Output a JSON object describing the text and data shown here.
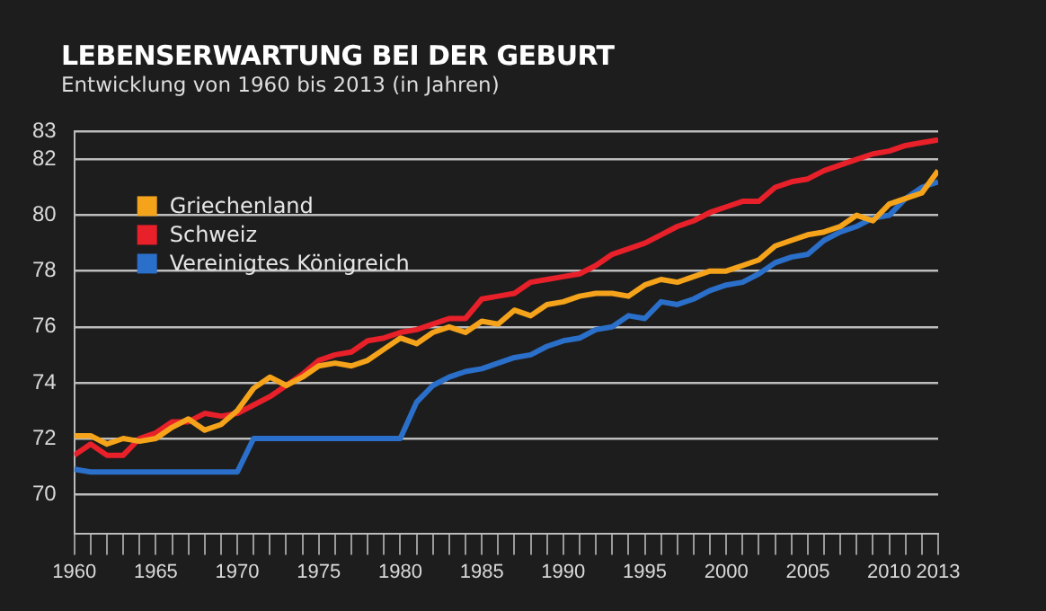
{
  "chart_data": {
    "type": "line",
    "title": "LEBENSERWARTUNG BEI DER GEBURT",
    "subtitle": "Entwicklung von 1960 bis 2013 (in Jahren)",
    "x": [
      1960,
      1961,
      1962,
      1963,
      1964,
      1965,
      1966,
      1967,
      1968,
      1969,
      1970,
      1971,
      1972,
      1973,
      1974,
      1975,
      1976,
      1977,
      1978,
      1979,
      1980,
      1981,
      1982,
      1983,
      1984,
      1985,
      1986,
      1987,
      1988,
      1989,
      1990,
      1991,
      1992,
      1993,
      1994,
      1995,
      1996,
      1997,
      1998,
      1999,
      2000,
      2001,
      2002,
      2003,
      2004,
      2005,
      2006,
      2007,
      2008,
      2009,
      2010,
      2011,
      2012,
      2013
    ],
    "series": [
      {
        "name": "Griechenland",
        "color": "#f5a31a",
        "values": [
          72.1,
          72.1,
          71.8,
          72.0,
          71.9,
          72.0,
          72.4,
          72.7,
          72.3,
          72.5,
          73.0,
          73.8,
          74.2,
          73.9,
          74.2,
          74.6,
          74.7,
          74.6,
          74.8,
          75.2,
          75.6,
          75.4,
          75.8,
          76.0,
          75.8,
          76.2,
          76.1,
          76.6,
          76.4,
          76.8,
          76.9,
          77.1,
          77.2,
          77.2,
          77.1,
          77.5,
          77.7,
          77.6,
          77.8,
          78.0,
          78.0,
          78.2,
          78.4,
          78.9,
          79.1,
          79.3,
          79.4,
          79.6,
          80.0,
          79.8,
          80.4,
          80.6,
          80.8,
          81.6
        ]
      },
      {
        "name": "Schweiz",
        "color": "#e8202a",
        "values": [
          71.4,
          71.8,
          71.4,
          71.4,
          72.0,
          72.2,
          72.6,
          72.6,
          72.9,
          72.8,
          72.9,
          73.2,
          73.5,
          73.9,
          74.3,
          74.8,
          75.0,
          75.1,
          75.5,
          75.6,
          75.8,
          75.9,
          76.1,
          76.3,
          76.3,
          77.0,
          77.1,
          77.2,
          77.6,
          77.7,
          77.8,
          77.9,
          78.2,
          78.6,
          78.8,
          79.0,
          79.3,
          79.6,
          79.8,
          80.1,
          80.3,
          80.5,
          80.5,
          81.0,
          81.2,
          81.3,
          81.6,
          81.8,
          82.0,
          82.2,
          82.3,
          82.5,
          82.6,
          82.7
        ]
      },
      {
        "name": "Vereinigtes Königreich",
        "color": "#2a6fc9",
        "values": [
          70.9,
          70.8,
          70.8,
          70.8,
          70.8,
          70.8,
          70.8,
          70.8,
          70.8,
          70.8,
          70.8,
          72.0,
          72.0,
          72.0,
          72.0,
          72.0,
          72.0,
          72.0,
          72.0,
          72.0,
          72.0,
          73.3,
          73.9,
          74.2,
          74.4,
          74.5,
          74.7,
          74.9,
          75.0,
          75.3,
          75.5,
          75.6,
          75.9,
          76.0,
          76.4,
          76.3,
          76.9,
          76.8,
          77.0,
          77.3,
          77.5,
          77.6,
          77.9,
          78.3,
          78.5,
          78.6,
          79.1,
          79.4,
          79.6,
          79.9,
          80.0,
          80.6,
          81.0,
          81.2
        ]
      }
    ],
    "xlim": [
      1960,
      2013
    ],
    "xticks": [
      1960,
      {
        "value": 1961,
        "label": null
      },
      {
        "value": 1962,
        "label": null
      },
      {
        "value": 1963,
        "label": null
      },
      {
        "value": 1964,
        "label": null
      },
      1965,
      {
        "value": 1966,
        "label": null
      },
      {
        "value": 1967,
        "label": null
      },
      {
        "value": 1968,
        "label": null
      },
      {
        "value": 1969,
        "label": null
      },
      1970,
      {
        "value": 1971,
        "label": null
      },
      {
        "value": 1972,
        "label": null
      },
      {
        "value": 1973,
        "label": null
      },
      {
        "value": 1974,
        "label": null
      },
      1975,
      {
        "value": 1976,
        "label": null
      },
      {
        "value": 1977,
        "label": null
      },
      {
        "value": 1978,
        "label": null
      },
      {
        "value": 1979,
        "label": null
      },
      1980,
      {
        "value": 1981,
        "label": null
      },
      {
        "value": 1982,
        "label": null
      },
      {
        "value": 1983,
        "label": null
      },
      {
        "value": 1984,
        "label": null
      },
      1985,
      {
        "value": 1986,
        "label": null
      },
      {
        "value": 1987,
        "label": null
      },
      {
        "value": 1988,
        "label": null
      },
      {
        "value": 1989,
        "label": null
      },
      1990,
      {
        "value": 1991,
        "label": null
      },
      {
        "value": 1992,
        "label": null
      },
      {
        "value": 1993,
        "label": null
      },
      {
        "value": 1994,
        "label": null
      },
      1995,
      {
        "value": 1996,
        "label": null
      },
      {
        "value": 1997,
        "label": null
      },
      {
        "value": 1998,
        "label": null
      },
      {
        "value": 1999,
        "label": null
      },
      2000,
      {
        "value": 2001,
        "label": null
      },
      {
        "value": 2002,
        "label": null
      },
      {
        "value": 2003,
        "label": null
      },
      {
        "value": 2004,
        "label": null
      },
      2005,
      {
        "value": 2006,
        "label": null
      },
      {
        "value": 2007,
        "label": null
      },
      {
        "value": 2008,
        "label": null
      },
      {
        "value": 2009,
        "label": null
      },
      2010,
      {
        "value": 2011,
        "label": null
      },
      {
        "value": 2012,
        "label": null
      },
      2013
    ],
    "ylim": [
      68.6,
      83
    ],
    "yticks": [
      70,
      72,
      74,
      76,
      78,
      80,
      82,
      83
    ],
    "grid": "y",
    "legend": "top left",
    "marker": "none",
    "line_style": "solid"
  }
}
